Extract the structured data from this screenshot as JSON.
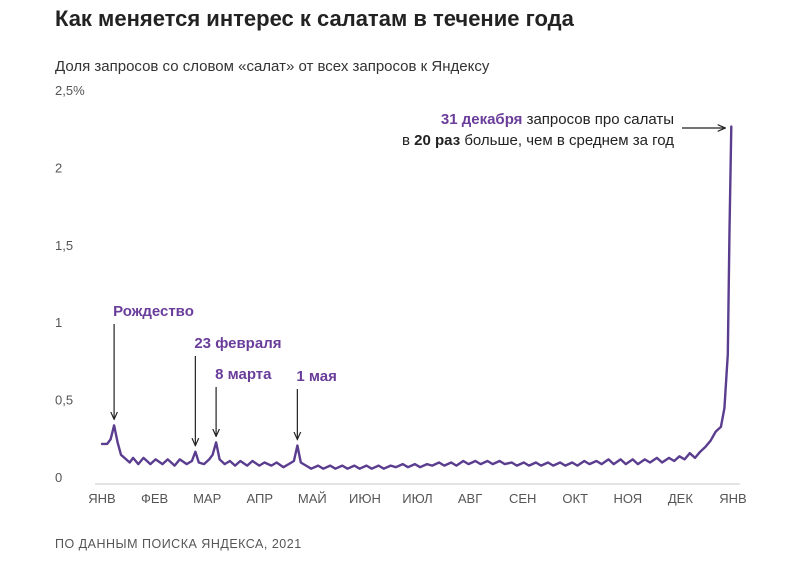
{
  "title": "Как меняется интерес к салатам в течение года",
  "subtitle": "Доля запросов со словом «салат» от всех запросов к Яндексу",
  "source": "ПО ДАННЫМ ПОИСКА ЯНДЕКСА, 2021",
  "colors": {
    "line": "#5b3d8f",
    "accent": "#6a3d9a",
    "axis": "#c8c8c8"
  },
  "chart_data": {
    "type": "line",
    "title": "Как меняется интерес к салатам в течение года",
    "ylabel": "Доля запросов со словом «салат» от всех запросов к Яндексу",
    "ylim": [
      0,
      2.5
    ],
    "y_ticks": [
      {
        "value": 0,
        "label": "0"
      },
      {
        "value": 0.5,
        "label": "0,5"
      },
      {
        "value": 1,
        "label": "1"
      },
      {
        "value": 1.5,
        "label": "1,5"
      },
      {
        "value": 2,
        "label": "2"
      },
      {
        "value": 2.5,
        "label": "2,5%"
      }
    ],
    "x_labels": [
      "ЯНВ",
      "ФЕВ",
      "МАР",
      "АПР",
      "МАЙ",
      "ИЮН",
      "ИЮЛ",
      "АВГ",
      "СЕН",
      "ОКТ",
      "НОЯ",
      "ДЕК",
      "ЯНВ"
    ],
    "grid": false,
    "series": [
      {
        "points": [
          [
            0,
            0.22
          ],
          [
            3,
            0.22
          ],
          [
            5,
            0.25
          ],
          [
            7,
            0.34
          ],
          [
            9,
            0.23
          ],
          [
            11,
            0.15
          ],
          [
            14,
            0.12
          ],
          [
            16,
            0.1
          ],
          [
            18,
            0.13
          ],
          [
            21,
            0.09
          ],
          [
            24,
            0.13
          ],
          [
            28,
            0.09
          ],
          [
            31,
            0.12
          ],
          [
            35,
            0.09
          ],
          [
            38,
            0.12
          ],
          [
            42,
            0.08
          ],
          [
            45,
            0.12
          ],
          [
            49,
            0.09
          ],
          [
            52,
            0.11
          ],
          [
            54,
            0.17
          ],
          [
            56,
            0.1
          ],
          [
            59,
            0.09
          ],
          [
            62,
            0.12
          ],
          [
            64,
            0.15
          ],
          [
            66,
            0.23
          ],
          [
            68,
            0.12
          ],
          [
            71,
            0.09
          ],
          [
            74,
            0.11
          ],
          [
            77,
            0.08
          ],
          [
            80,
            0.11
          ],
          [
            84,
            0.08
          ],
          [
            87,
            0.11
          ],
          [
            91,
            0.08
          ],
          [
            94,
            0.1
          ],
          [
            98,
            0.08
          ],
          [
            101,
            0.1
          ],
          [
            105,
            0.07
          ],
          [
            108,
            0.09
          ],
          [
            111,
            0.11
          ],
          [
            113,
            0.21
          ],
          [
            115,
            0.1
          ],
          [
            118,
            0.08
          ],
          [
            121,
            0.06
          ],
          [
            125,
            0.08
          ],
          [
            128,
            0.06
          ],
          [
            132,
            0.08
          ],
          [
            135,
            0.06
          ],
          [
            139,
            0.08
          ],
          [
            142,
            0.06
          ],
          [
            146,
            0.08
          ],
          [
            149,
            0.06
          ],
          [
            153,
            0.08
          ],
          [
            156,
            0.06
          ],
          [
            160,
            0.08
          ],
          [
            163,
            0.06
          ],
          [
            167,
            0.08
          ],
          [
            170,
            0.07
          ],
          [
            174,
            0.09
          ],
          [
            177,
            0.07
          ],
          [
            181,
            0.09
          ],
          [
            184,
            0.07
          ],
          [
            188,
            0.09
          ],
          [
            191,
            0.08
          ],
          [
            195,
            0.1
          ],
          [
            198,
            0.08
          ],
          [
            202,
            0.1
          ],
          [
            205,
            0.08
          ],
          [
            209,
            0.11
          ],
          [
            212,
            0.09
          ],
          [
            216,
            0.11
          ],
          [
            219,
            0.09
          ],
          [
            223,
            0.11
          ],
          [
            226,
            0.09
          ],
          [
            230,
            0.11
          ],
          [
            233,
            0.09
          ],
          [
            237,
            0.1
          ],
          [
            240,
            0.08
          ],
          [
            244,
            0.1
          ],
          [
            247,
            0.08
          ],
          [
            251,
            0.1
          ],
          [
            254,
            0.08
          ],
          [
            258,
            0.1
          ],
          [
            261,
            0.08
          ],
          [
            265,
            0.1
          ],
          [
            268,
            0.08
          ],
          [
            272,
            0.1
          ],
          [
            275,
            0.08
          ],
          [
            279,
            0.11
          ],
          [
            282,
            0.09
          ],
          [
            286,
            0.11
          ],
          [
            289,
            0.09
          ],
          [
            293,
            0.12
          ],
          [
            296,
            0.09
          ],
          [
            300,
            0.12
          ],
          [
            303,
            0.09
          ],
          [
            307,
            0.12
          ],
          [
            310,
            0.09
          ],
          [
            314,
            0.12
          ],
          [
            317,
            0.1
          ],
          [
            321,
            0.13
          ],
          [
            324,
            0.1
          ],
          [
            328,
            0.13
          ],
          [
            331,
            0.11
          ],
          [
            334,
            0.14
          ],
          [
            337,
            0.12
          ],
          [
            340,
            0.16
          ],
          [
            343,
            0.13
          ],
          [
            346,
            0.17
          ],
          [
            349,
            0.2
          ],
          [
            352,
            0.24
          ],
          [
            355,
            0.3
          ],
          [
            358,
            0.33
          ],
          [
            360,
            0.45
          ],
          [
            362,
            0.8
          ],
          [
            363,
            1.6
          ],
          [
            364,
            2.27
          ]
        ]
      }
    ],
    "annotations": [
      {
        "text": "Рождество",
        "x": 7,
        "y": 0.34
      },
      {
        "text": "23 февраля",
        "x": 54,
        "y": 0.17
      },
      {
        "text": "8 марта",
        "x": 66,
        "y": 0.23
      },
      {
        "text": "1 мая",
        "x": 113,
        "y": 0.21
      }
    ],
    "callout": {
      "line1_bold": "31 декабря",
      "line1_rest": " запросов про салаты",
      "line2_pre": "в ",
      "line2_bold": "20 раз",
      "line2_rest": " больше, чем в среднем за год",
      "x": 364,
      "y": 2.27
    }
  }
}
